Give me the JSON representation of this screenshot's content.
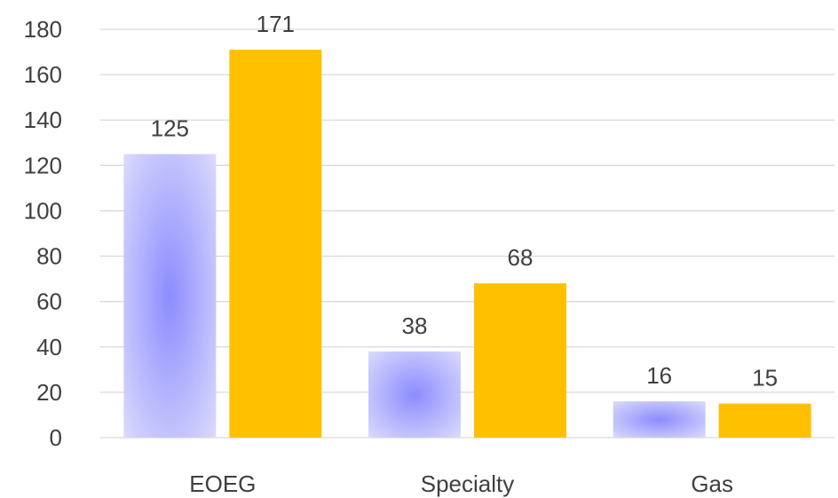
{
  "chart_data": {
    "type": "bar",
    "categories": [
      "EOEG",
      "Specialty",
      "Gas"
    ],
    "series": [
      {
        "values": [
          125,
          38,
          16
        ],
        "color": "#8c8cff",
        "fill": "radial-gradient"
      },
      {
        "values": [
          171,
          68,
          15
        ],
        "color": "#ffc000"
      }
    ],
    "ylim": [
      0,
      180
    ],
    "yticks": [
      "0",
      "20",
      "40",
      "60",
      "80",
      "100",
      "120",
      "140",
      "160",
      "180"
    ],
    "grid": true,
    "legend": "none",
    "data_labels": true
  }
}
